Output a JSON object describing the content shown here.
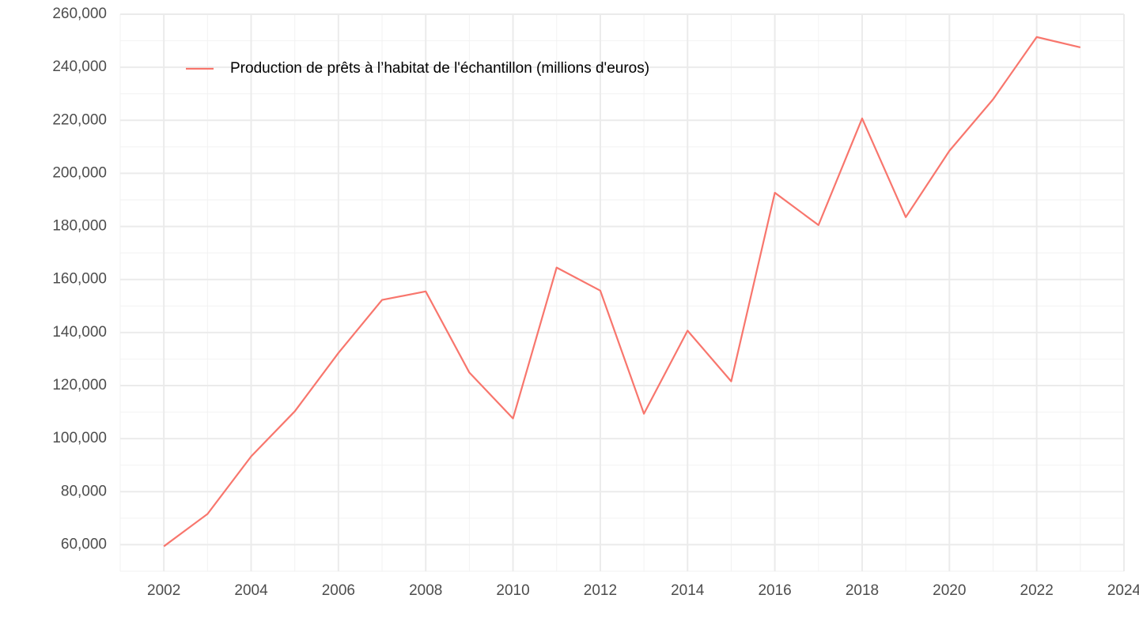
{
  "chart_data": {
    "type": "line",
    "x": [
      2002,
      2003,
      2004,
      2005,
      2006,
      2007,
      2008,
      2009,
      2010,
      2011,
      2012,
      2013,
      2014,
      2015,
      2016,
      2017,
      2018,
      2019,
      2020,
      2021,
      2022,
      2023
    ],
    "series": [
      {
        "name": "Production de prêts à l’habitat de l'échantillon (millions d'euros)",
        "color": "#f8766d",
        "values": [
          59400,
          71600,
          93300,
          110300,
          132300,
          152300,
          155500,
          124900,
          107600,
          164500,
          155800,
          109400,
          140700,
          121600,
          192700,
          180500,
          220700,
          183500,
          208500,
          227900,
          251400,
          247500
        ]
      }
    ],
    "xlim": [
      2001,
      2024
    ],
    "xticks": [
      2002,
      2004,
      2006,
      2008,
      2010,
      2012,
      2014,
      2016,
      2018,
      2020,
      2022,
      2024
    ],
    "ylim": [
      50000,
      260000
    ],
    "yticks": [
      {
        "value": 60000,
        "label": "60,000"
      },
      {
        "value": 80000,
        "label": "80,000"
      },
      {
        "value": 100000,
        "label": "100,000"
      },
      {
        "value": 120000,
        "label": "120,000"
      },
      {
        "value": 140000,
        "label": "140,000"
      },
      {
        "value": 160000,
        "label": "160,000"
      },
      {
        "value": 180000,
        "label": "180,000"
      },
      {
        "value": 200000,
        "label": "200,000"
      },
      {
        "value": 220000,
        "label": "220,000"
      },
      {
        "value": 240000,
        "label": "240,000"
      },
      {
        "value": 260000,
        "label": "260,000"
      }
    ],
    "grid": true,
    "legend": "top-left"
  }
}
